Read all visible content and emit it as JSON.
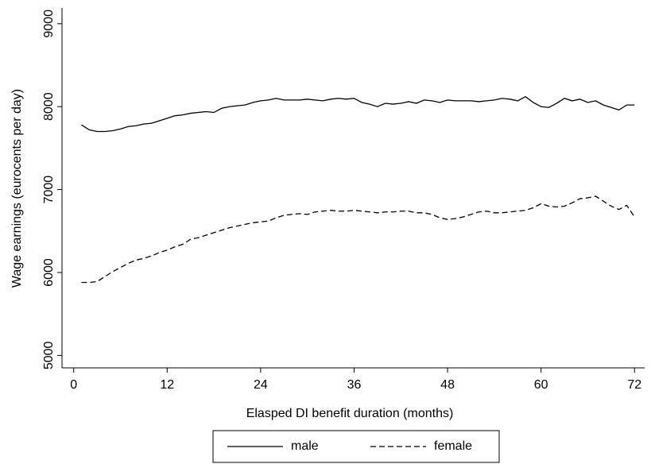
{
  "chart_data": {
    "type": "line",
    "x_label": "Elasped DI benefit duration (months)",
    "y_label": "Wage earnings (eurocents per day)",
    "x": [
      1,
      2,
      3,
      4,
      5,
      6,
      7,
      8,
      9,
      10,
      11,
      12,
      13,
      14,
      15,
      16,
      17,
      18,
      19,
      20,
      21,
      22,
      23,
      24,
      25,
      26,
      27,
      28,
      29,
      30,
      31,
      32,
      33,
      34,
      35,
      36,
      37,
      38,
      39,
      40,
      41,
      42,
      43,
      44,
      45,
      46,
      47,
      48,
      49,
      50,
      51,
      52,
      53,
      54,
      55,
      56,
      57,
      58,
      59,
      60,
      61,
      62,
      63,
      64,
      65,
      66,
      67,
      68,
      69,
      70,
      71,
      72
    ],
    "series": [
      {
        "name": "male",
        "color": "#000000",
        "dash": false,
        "values": [
          7780,
          7720,
          7700,
          7700,
          7710,
          7730,
          7760,
          7770,
          7790,
          7800,
          7830,
          7860,
          7890,
          7900,
          7920,
          7930,
          7940,
          7930,
          7980,
          8000,
          8010,
          8020,
          8050,
          8070,
          8080,
          8100,
          8080,
          8080,
          8080,
          8090,
          8080,
          8070,
          8090,
          8100,
          8090,
          8100,
          8050,
          8030,
          8000,
          8040,
          8030,
          8040,
          8060,
          8040,
          8080,
          8070,
          8050,
          8080,
          8070,
          8070,
          8070,
          8060,
          8070,
          8080,
          8100,
          8090,
          8070,
          8120,
          8050,
          8000,
          7990,
          8040,
          8100,
          8070,
          8090,
          8050,
          8070,
          8020,
          7990,
          7960,
          8020,
          8020
        ]
      },
      {
        "name": "female",
        "color": "#000000",
        "dash": true,
        "values": [
          5880,
          5880,
          5890,
          5950,
          6010,
          6060,
          6110,
          6150,
          6170,
          6200,
          6240,
          6270,
          6310,
          6340,
          6400,
          6420,
          6450,
          6480,
          6510,
          6540,
          6560,
          6580,
          6600,
          6610,
          6620,
          6660,
          6690,
          6700,
          6710,
          6700,
          6730,
          6740,
          6750,
          6740,
          6740,
          6750,
          6740,
          6730,
          6720,
          6730,
          6730,
          6740,
          6740,
          6720,
          6720,
          6700,
          6660,
          6640,
          6650,
          6670,
          6700,
          6730,
          6740,
          6720,
          6720,
          6730,
          6740,
          6750,
          6780,
          6830,
          6800,
          6790,
          6800,
          6840,
          6890,
          6900,
          6920,
          6860,
          6800,
          6760,
          6810,
          6670
        ]
      }
    ],
    "xlim": [
      -1.5,
      73.3
    ],
    "xticks": [
      0,
      12,
      24,
      36,
      48,
      60,
      72
    ],
    "ylim": [
      4850,
      9190
    ],
    "yticks": [
      5000,
      6000,
      7000,
      8000,
      9000
    ],
    "grid": false,
    "legend": "bottom"
  }
}
